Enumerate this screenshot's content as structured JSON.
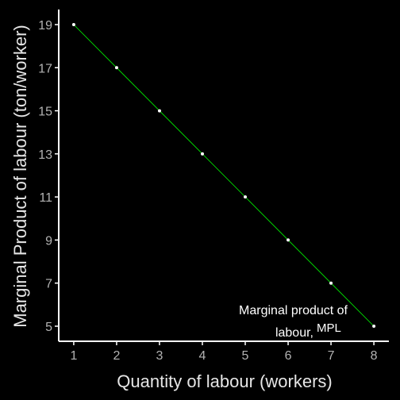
{
  "chart_data": {
    "type": "line",
    "xlabel": "Quantity of labour (workers)",
    "ylabel": "Marginal Product of labour (ton/worker)",
    "x": [
      1,
      2,
      3,
      4,
      5,
      6,
      7,
      8
    ],
    "series": [
      {
        "values": [
          19,
          17,
          15,
          13,
          11,
          9,
          7,
          5
        ],
        "color": "#00ff00",
        "point_color": "#ffffff"
      }
    ],
    "xticks": [
      "1",
      "2",
      "3",
      "4",
      "5",
      "6",
      "7",
      "8"
    ],
    "yticks": [
      "5",
      "7",
      "9",
      "11",
      "13",
      "15",
      "17",
      "19"
    ],
    "xlim": [
      0.65,
      8.35
    ],
    "ylim": [
      4.3,
      19.7
    ],
    "grid": false,
    "annotation": {
      "line1": "Marginal product of",
      "line2": "labour,",
      "sub": "MPL"
    },
    "colors": {
      "background": "#000000",
      "axis": "#ffffff",
      "tick_label": "#b3b3b3"
    }
  }
}
